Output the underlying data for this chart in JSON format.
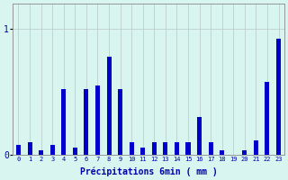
{
  "xlabel": "Précipitations 6min ( mm )",
  "background_color": "#d8f5f0",
  "bar_color": "#0000cc",
  "grid_color": "#b8c8c8",
  "ylim": [
    0,
    1.2
  ],
  "yticks": [
    0,
    1
  ],
  "categories": [
    0,
    1,
    2,
    3,
    4,
    5,
    6,
    7,
    8,
    9,
    10,
    11,
    12,
    13,
    14,
    15,
    16,
    17,
    18,
    19,
    20,
    21,
    22,
    23
  ],
  "values": [
    0.08,
    0.1,
    0.04,
    0.08,
    0.52,
    0.06,
    0.52,
    0.55,
    0.78,
    0.52,
    0.1,
    0.06,
    0.1,
    0.1,
    0.1,
    0.1,
    0.3,
    0.1,
    0.04,
    0.0,
    0.04,
    0.12,
    0.58,
    0.92
  ],
  "bar_width": 0.4
}
